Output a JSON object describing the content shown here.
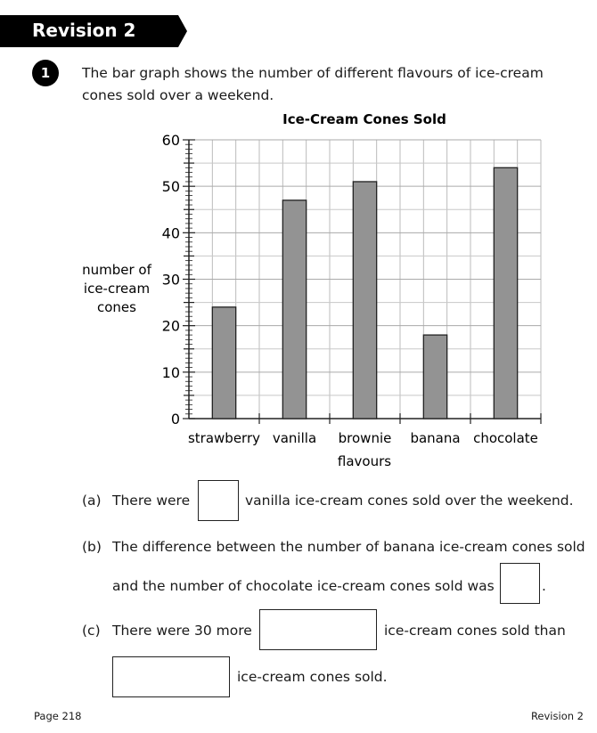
{
  "header": {
    "title": "Revision 2"
  },
  "question": {
    "number": "1",
    "intro": "The bar graph shows the number of different flavours of ice-cream cones sold over a weekend."
  },
  "chart_data": {
    "type": "bar",
    "title": "Ice-Cream Cones Sold",
    "xlabel": "flavours",
    "ylabel": [
      "number of",
      "ice-cream",
      "cones"
    ],
    "categories": [
      "strawberry",
      "vanilla",
      "brownie",
      "banana",
      "chocolate"
    ],
    "values": [
      24,
      47,
      51,
      18,
      54
    ],
    "ylim": [
      0,
      60
    ],
    "yticks": [
      0,
      10,
      20,
      30,
      40,
      50,
      60
    ],
    "grid": true,
    "bar_color": "#939393"
  },
  "parts": {
    "a": {
      "label": "(a)",
      "before": "There were",
      "after": "vanilla ice-cream cones sold over the weekend."
    },
    "b": {
      "label": "(b)",
      "line1": "The difference between the number of banana ice-cream cones sold",
      "line2": "and the number of chocolate ice-cream cones sold was",
      "after": "."
    },
    "c": {
      "label": "(c)",
      "before": "There were 30 more",
      "after": "ice-cream cones sold than",
      "line2_after": "ice-cream cones sold."
    }
  },
  "footer": {
    "left": "Page 218",
    "right": "Revision 2"
  }
}
